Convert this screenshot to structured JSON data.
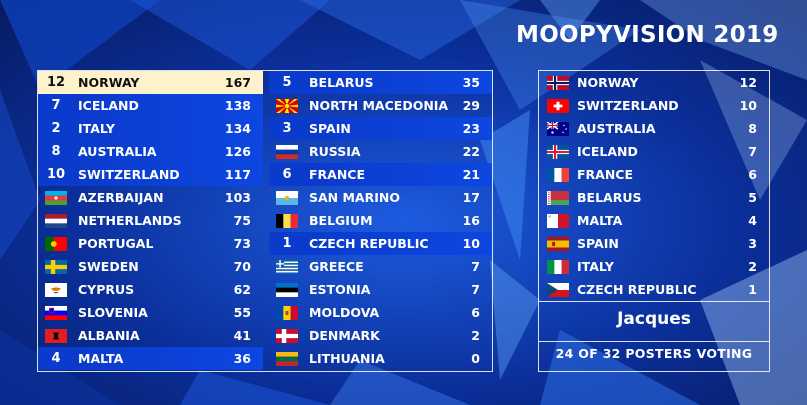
{
  "title": "MOOPYVISION 2019",
  "colors": {
    "background": "#0a2a8c",
    "voted_row": "#0a3bcc",
    "leader_row": "#fdf2cc"
  },
  "scoreboard": {
    "left": [
      {
        "country": "NORWAY",
        "score": "167",
        "points": "12",
        "flag": "norway-flag",
        "state": "leader"
      },
      {
        "country": "ICELAND",
        "score": "138",
        "points": "7",
        "flag": "iceland-flag",
        "state": "voted"
      },
      {
        "country": "ITALY",
        "score": "134",
        "points": "2",
        "flag": "italy-flag",
        "state": "voted"
      },
      {
        "country": "AUSTRALIA",
        "score": "126",
        "points": "8",
        "flag": "australia-flag",
        "state": "voted"
      },
      {
        "country": "SWITZERLAND",
        "score": "117",
        "points": "10",
        "flag": "switzerland-flag",
        "state": "voted"
      },
      {
        "country": "AZERBAIJAN",
        "score": "103",
        "points": "",
        "flag": "azerbaijan-flag",
        "state": ""
      },
      {
        "country": "NETHERLANDS",
        "score": "75",
        "points": "",
        "flag": "netherlands-flag",
        "state": ""
      },
      {
        "country": "PORTUGAL",
        "score": "73",
        "points": "",
        "flag": "portugal-flag",
        "state": ""
      },
      {
        "country": "SWEDEN",
        "score": "70",
        "points": "",
        "flag": "sweden-flag",
        "state": ""
      },
      {
        "country": "CYPRUS",
        "score": "62",
        "points": "",
        "flag": "cyprus-flag",
        "state": ""
      },
      {
        "country": "SLOVENIA",
        "score": "55",
        "points": "",
        "flag": "slovenia-flag",
        "state": ""
      },
      {
        "country": "ALBANIA",
        "score": "41",
        "points": "",
        "flag": "albania-flag",
        "state": ""
      },
      {
        "country": "MALTA",
        "score": "36",
        "points": "4",
        "flag": "malta-flag",
        "state": "voted"
      }
    ],
    "right": [
      {
        "country": "BELARUS",
        "score": "35",
        "points": "5",
        "flag": "belarus-flag",
        "state": "voted"
      },
      {
        "country": "NORTH MACEDONIA",
        "score": "29",
        "points": "",
        "flag": "north-macedonia-flag",
        "state": ""
      },
      {
        "country": "SPAIN",
        "score": "23",
        "points": "3",
        "flag": "spain-flag",
        "state": "voted"
      },
      {
        "country": "RUSSIA",
        "score": "22",
        "points": "",
        "flag": "russia-flag",
        "state": ""
      },
      {
        "country": "FRANCE",
        "score": "21",
        "points": "6",
        "flag": "france-flag",
        "state": "voted"
      },
      {
        "country": "SAN MARINO",
        "score": "17",
        "points": "",
        "flag": "san-marino-flag",
        "state": ""
      },
      {
        "country": "BELGIUM",
        "score": "16",
        "points": "",
        "flag": "belgium-flag",
        "state": ""
      },
      {
        "country": "CZECH REPUBLIC",
        "score": "10",
        "points": "1",
        "flag": "czech-republic-flag",
        "state": "voted"
      },
      {
        "country": "GREECE",
        "score": "7",
        "points": "",
        "flag": "greece-flag",
        "state": ""
      },
      {
        "country": "ESTONIA",
        "score": "7",
        "points": "",
        "flag": "estonia-flag",
        "state": ""
      },
      {
        "country": "MOLDOVA",
        "score": "6",
        "points": "",
        "flag": "moldova-flag",
        "state": ""
      },
      {
        "country": "DENMARK",
        "score": "2",
        "points": "",
        "flag": "denmark-flag",
        "state": ""
      },
      {
        "country": "LITHUANIA",
        "score": "0",
        "points": "",
        "flag": "lithuania-flag",
        "state": ""
      }
    ]
  },
  "votes": {
    "list": [
      {
        "country": "NORWAY",
        "points": "12",
        "flag": "norway-flag"
      },
      {
        "country": "SWITZERLAND",
        "points": "10",
        "flag": "switzerland-flag"
      },
      {
        "country": "AUSTRALIA",
        "points": "8",
        "flag": "australia-flag"
      },
      {
        "country": "ICELAND",
        "points": "7",
        "flag": "iceland-flag"
      },
      {
        "country": "FRANCE",
        "points": "6",
        "flag": "france-flag"
      },
      {
        "country": "BELARUS",
        "points": "5",
        "flag": "belarus-flag"
      },
      {
        "country": "MALTA",
        "points": "4",
        "flag": "malta-flag"
      },
      {
        "country": "SPAIN",
        "points": "3",
        "flag": "spain-flag"
      },
      {
        "country": "ITALY",
        "points": "2",
        "flag": "italy-flag"
      },
      {
        "country": "CZECH REPUBLIC",
        "points": "1",
        "flag": "czech-republic-flag"
      }
    ],
    "voter": "Jacques",
    "progress": "24 OF 32 POSTERS VOTING"
  }
}
